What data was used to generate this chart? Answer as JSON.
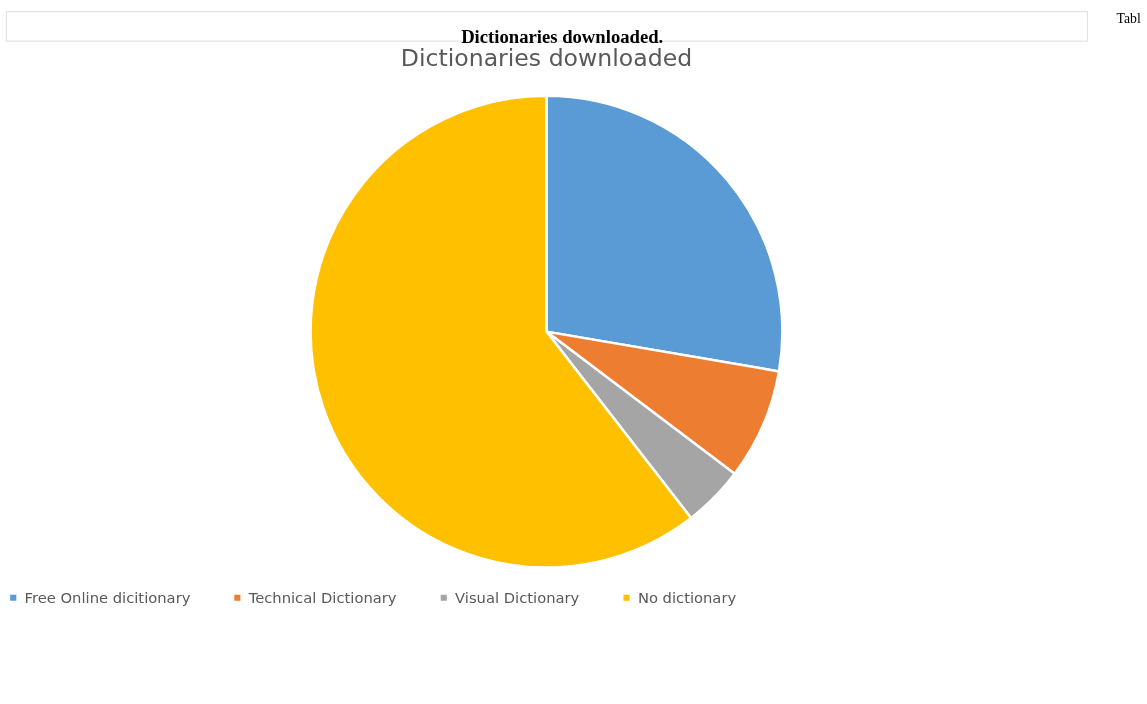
{
  "chart_data": {
    "type": "pie",
    "title": "Dictionaries downloaded",
    "annotations": [
      "Tabl",
      "Dictionaries downloaded."
    ],
    "categories": [
      "Free Online dicitionary",
      "Technical Dictionary",
      "Visual Dictionary",
      "No dictionary"
    ],
    "values": [
      27.7,
      7.6,
      4.2,
      60.5
    ],
    "colors": [
      "#5b9bd5",
      "#ed7d31",
      "#a5a5a5",
      "#ffc000"
    ],
    "legend": "bottom"
  }
}
